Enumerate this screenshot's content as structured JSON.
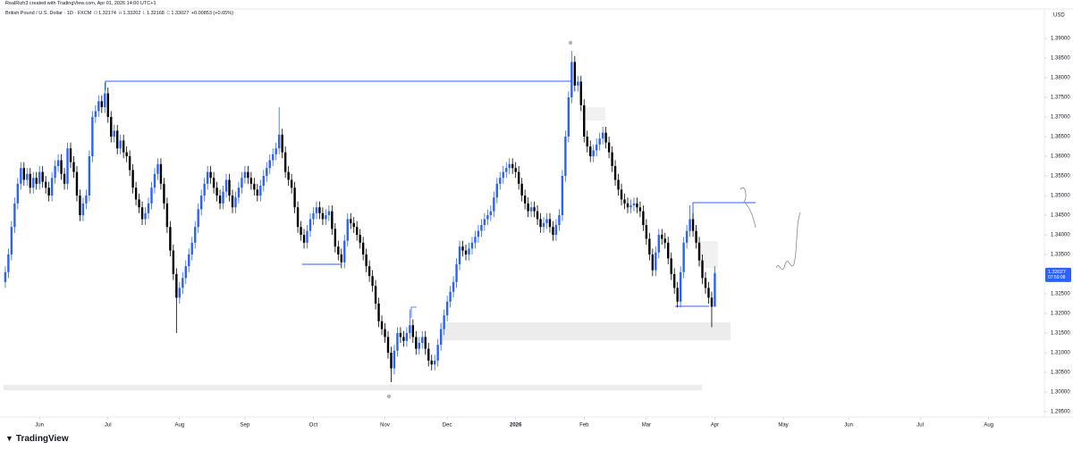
{
  "chart_data": {
    "type": "candlestick",
    "creator_note": "RealRizh3 created with TradingView.com, Apr 01, 2026 14:00 UTC+1",
    "symbol": "British Pound / U.S. Dollar · 1D · FXCM",
    "ohlc_labels": [
      "O",
      "H",
      "L",
      "C"
    ],
    "change": "+0.00853 (+0.65%)",
    "currency": "USD",
    "countdown": "07:59:08",
    "up_color": "#2962ff",
    "down_color": "#000000",
    "grid": false,
    "open": [
      1.328,
      1.3305,
      1.335,
      1.342,
      1.348,
      1.353,
      1.357,
      1.354,
      1.3555,
      1.352,
      1.3545,
      1.353,
      1.356,
      1.3535,
      1.352,
      1.35,
      1.3545,
      1.3575,
      1.359,
      1.3555,
      1.353,
      1.362,
      1.3585,
      1.356,
      1.35,
      1.345,
      1.348,
      1.35,
      1.36,
      1.37,
      1.3715,
      1.374,
      1.3725,
      1.376,
      1.37,
      1.365,
      1.3665,
      1.362,
      1.364,
      1.361,
      1.36,
      1.3565,
      1.352,
      1.349,
      1.347,
      1.344,
      1.3455,
      1.348,
      1.352,
      1.3555,
      1.358,
      1.353,
      1.348,
      1.342,
      1.336,
      1.33,
      1.324,
      1.3265,
      1.329,
      1.332,
      1.335,
      1.338,
      1.342,
      1.3465,
      1.35,
      1.353,
      1.356,
      1.3545,
      1.352,
      1.35,
      1.348,
      1.351,
      1.354,
      1.35,
      1.347,
      1.3495,
      1.352,
      1.3545,
      1.356,
      1.3545,
      1.353,
      1.3515,
      1.35,
      1.3525,
      1.355,
      1.357,
      1.359,
      1.3605,
      1.362,
      1.3655,
      1.361,
      1.356,
      1.354,
      1.352,
      1.347,
      1.342,
      1.34,
      1.338,
      1.341,
      1.344,
      1.3455,
      1.347,
      1.3455,
      1.344,
      1.345,
      1.346,
      1.3415,
      1.337,
      1.335,
      1.333,
      1.3385,
      1.344,
      1.343,
      1.342,
      1.34,
      1.338,
      1.335,
      1.332,
      1.3295,
      1.327,
      1.3225,
      1.318,
      1.316,
      1.314,
      1.31,
      1.306,
      1.3105,
      1.315,
      1.314,
      1.313,
      1.315,
      1.317,
      1.314,
      1.311,
      1.3125,
      1.314,
      1.311,
      1.308,
      1.307,
      1.308,
      1.312,
      1.316,
      1.3195,
      1.323,
      1.3255,
      1.328,
      1.3325,
      1.337,
      1.336,
      1.335,
      1.3365,
      1.338,
      1.3395,
      1.341,
      1.3425,
      1.344,
      1.345,
      1.346,
      1.3495,
      1.353,
      1.3545,
      1.356,
      1.357,
      1.358,
      1.357,
      1.356,
      1.353,
      1.35,
      1.348,
      1.346,
      1.347,
      1.346,
      1.344,
      1.342,
      1.343,
      1.344,
      1.342,
      1.34,
      1.3425,
      1.345,
      1.355,
      1.365,
      1.375,
      1.384,
      1.378,
      1.379,
      1.373,
      1.365,
      1.3625,
      1.36,
      1.3615,
      1.363,
      1.3645,
      1.366,
      1.3635,
      1.361,
      1.3575,
      1.354,
      1.3515,
      1.349,
      1.348,
      1.347,
      1.3475,
      1.348,
      1.347,
      1.346,
      1.3425,
      1.339,
      1.335,
      1.331,
      1.3355,
      1.34,
      1.339,
      1.338,
      1.334,
      1.33,
      1.3265,
      1.323,
      1.3305,
      1.338,
      1.341,
      1.344,
      1.341,
      1.338,
      1.3335,
      1.329,
      1.3265,
      1.324,
      1.32174
    ],
    "high": [
      1.332,
      1.3365,
      1.3435,
      1.3495,
      1.3545,
      1.3585,
      1.3585,
      1.357,
      1.357,
      1.356,
      1.356,
      1.3575,
      1.3575,
      1.355,
      1.3535,
      1.356,
      1.359,
      1.3605,
      1.3605,
      1.357,
      1.3635,
      1.3635,
      1.36,
      1.3575,
      1.3515,
      1.3495,
      1.3515,
      1.3615,
      1.3715,
      1.373,
      1.3755,
      1.3755,
      1.3788,
      1.3775,
      1.3715,
      1.368,
      1.368,
      1.3655,
      1.3655,
      1.3625,
      1.3615,
      1.358,
      1.3535,
      1.3505,
      1.3485,
      1.347,
      1.3495,
      1.3535,
      1.357,
      1.3595,
      1.3595,
      1.3545,
      1.3495,
      1.3435,
      1.3375,
      1.3315,
      1.328,
      1.3305,
      1.3335,
      1.3365,
      1.3395,
      1.3435,
      1.348,
      1.3515,
      1.3545,
      1.3575,
      1.3575,
      1.356,
      1.3535,
      1.3515,
      1.3525,
      1.3555,
      1.3555,
      1.3515,
      1.351,
      1.3535,
      1.356,
      1.3575,
      1.3575,
      1.356,
      1.3545,
      1.353,
      1.354,
      1.3565,
      1.3585,
      1.3605,
      1.362,
      1.3635,
      1.3725,
      1.367,
      1.3625,
      1.3575,
      1.3555,
      1.3535,
      1.3485,
      1.3435,
      1.3415,
      1.3425,
      1.3455,
      1.347,
      1.3485,
      1.3485,
      1.347,
      1.3465,
      1.3475,
      1.3475,
      1.343,
      1.3385,
      1.3365,
      1.34,
      1.3455,
      1.3455,
      1.3445,
      1.3435,
      1.3415,
      1.3395,
      1.3365,
      1.3335,
      1.331,
      1.3285,
      1.324,
      1.3195,
      1.3175,
      1.3155,
      1.3115,
      1.312,
      1.3165,
      1.3165,
      1.3155,
      1.3165,
      1.321,
      1.3185,
      1.3155,
      1.314,
      1.3155,
      1.3155,
      1.3125,
      1.3095,
      1.3095,
      1.3135,
      1.3175,
      1.321,
      1.3245,
      1.327,
      1.3295,
      1.334,
      1.3385,
      1.3385,
      1.3375,
      1.338,
      1.3395,
      1.341,
      1.3425,
      1.344,
      1.3455,
      1.3465,
      1.3475,
      1.351,
      1.3545,
      1.356,
      1.3575,
      1.3585,
      1.3595,
      1.3595,
      1.3585,
      1.3575,
      1.3545,
      1.3515,
      1.3495,
      1.3485,
      1.3485,
      1.3475,
      1.3455,
      1.3445,
      1.3455,
      1.3455,
      1.3435,
      1.344,
      1.3465,
      1.3565,
      1.3665,
      1.3765,
      1.3868,
      1.3855,
      1.3805,
      1.3805,
      1.3745,
      1.3665,
      1.364,
      1.363,
      1.3645,
      1.366,
      1.3675,
      1.3675,
      1.365,
      1.3625,
      1.359,
      1.3555,
      1.353,
      1.3505,
      1.3495,
      1.349,
      1.3495,
      1.3495,
      1.3485,
      1.3475,
      1.344,
      1.3405,
      1.3365,
      1.337,
      1.3415,
      1.3415,
      1.3405,
      1.3395,
      1.3355,
      1.3315,
      1.328,
      1.332,
      1.3395,
      1.3425,
      1.3475,
      1.3455,
      1.3425,
      1.3395,
      1.335,
      1.3305,
      1.328,
      1.3255,
      1.33202
    ],
    "low": [
      1.3265,
      1.329,
      1.3335,
      1.3405,
      1.3465,
      1.3515,
      1.3525,
      1.3525,
      1.3505,
      1.3505,
      1.3515,
      1.3515,
      1.352,
      1.3505,
      1.3485,
      1.3485,
      1.353,
      1.356,
      1.354,
      1.3515,
      1.3515,
      1.357,
      1.3545,
      1.3485,
      1.3435,
      1.3435,
      1.3465,
      1.3485,
      1.3585,
      1.3685,
      1.37,
      1.371,
      1.371,
      1.3685,
      1.3635,
      1.3635,
      1.3605,
      1.3605,
      1.3595,
      1.3585,
      1.355,
      1.3505,
      1.3475,
      1.3455,
      1.3425,
      1.3425,
      1.344,
      1.3465,
      1.3505,
      1.354,
      1.3515,
      1.3465,
      1.3405,
      1.3345,
      1.3285,
      1.315,
      1.3225,
      1.325,
      1.3275,
      1.3305,
      1.3335,
      1.3365,
      1.3405,
      1.345,
      1.3485,
      1.3515,
      1.353,
      1.3505,
      1.3485,
      1.3465,
      1.3465,
      1.3495,
      1.3485,
      1.3455,
      1.3455,
      1.348,
      1.3505,
      1.353,
      1.353,
      1.3515,
      1.35,
      1.3485,
      1.3485,
      1.351,
      1.3535,
      1.3555,
      1.3575,
      1.359,
      1.3605,
      1.3595,
      1.3545,
      1.3525,
      1.3505,
      1.3455,
      1.3405,
      1.3385,
      1.3365,
      1.3365,
      1.3395,
      1.3425,
      1.344,
      1.344,
      1.3425,
      1.3425,
      1.3435,
      1.34,
      1.3355,
      1.3335,
      1.3315,
      1.3315,
      1.337,
      1.3415,
      1.3405,
      1.3385,
      1.3365,
      1.3335,
      1.3305,
      1.328,
      1.3255,
      1.321,
      1.3165,
      1.3145,
      1.3125,
      1.3085,
      1.3025,
      1.3045,
      1.309,
      1.3125,
      1.3115,
      1.3115,
      1.3135,
      1.3125,
      1.3095,
      1.3095,
      1.311,
      1.3095,
      1.3065,
      1.3055,
      1.3055,
      1.3065,
      1.3105,
      1.3145,
      1.318,
      1.3215,
      1.324,
      1.3265,
      1.331,
      1.3345,
      1.3335,
      1.3335,
      1.335,
      1.3365,
      1.338,
      1.3395,
      1.341,
      1.3425,
      1.3435,
      1.3445,
      1.348,
      1.3515,
      1.353,
      1.3545,
      1.3555,
      1.3555,
      1.3545,
      1.3515,
      1.3485,
      1.3465,
      1.3445,
      1.3445,
      1.3445,
      1.3425,
      1.3405,
      1.3405,
      1.3415,
      1.3405,
      1.3385,
      1.3385,
      1.341,
      1.3435,
      1.3535,
      1.3635,
      1.3735,
      1.3765,
      1.3765,
      1.3715,
      1.3635,
      1.361,
      1.3585,
      1.3585,
      1.36,
      1.3615,
      1.363,
      1.362,
      1.3595,
      1.356,
      1.3525,
      1.35,
      1.3475,
      1.3465,
      1.3455,
      1.3455,
      1.346,
      1.3455,
      1.3445,
      1.341,
      1.3375,
      1.3335,
      1.3295,
      1.3295,
      1.334,
      1.3375,
      1.3365,
      1.3325,
      1.3285,
      1.325,
      1.3215,
      1.3215,
      1.329,
      1.3365,
      1.3395,
      1.3395,
      1.3365,
      1.332,
      1.3275,
      1.325,
      1.3225,
      1.3165,
      1.32168
    ],
    "close": [
      1.3305,
      1.335,
      1.342,
      1.348,
      1.353,
      1.357,
      1.354,
      1.3555,
      1.352,
      1.3545,
      1.353,
      1.356,
      1.3535,
      1.352,
      1.35,
      1.3545,
      1.3575,
      1.359,
      1.3555,
      1.353,
      1.362,
      1.3585,
      1.356,
      1.35,
      1.345,
      1.348,
      1.35,
      1.36,
      1.37,
      1.3715,
      1.374,
      1.3725,
      1.376,
      1.37,
      1.365,
      1.3665,
      1.362,
      1.364,
      1.361,
      1.36,
      1.3565,
      1.352,
      1.349,
      1.347,
      1.344,
      1.3455,
      1.348,
      1.352,
      1.3555,
      1.358,
      1.353,
      1.348,
      1.342,
      1.336,
      1.33,
      1.324,
      1.3265,
      1.329,
      1.332,
      1.335,
      1.338,
      1.342,
      1.3465,
      1.35,
      1.353,
      1.356,
      1.3545,
      1.352,
      1.35,
      1.348,
      1.351,
      1.354,
      1.35,
      1.347,
      1.3495,
      1.352,
      1.3545,
      1.356,
      1.3545,
      1.353,
      1.3515,
      1.35,
      1.3525,
      1.355,
      1.357,
      1.359,
      1.3605,
      1.362,
      1.3655,
      1.361,
      1.356,
      1.354,
      1.352,
      1.347,
      1.342,
      1.34,
      1.338,
      1.341,
      1.344,
      1.3455,
      1.347,
      1.3455,
      1.344,
      1.345,
      1.346,
      1.3415,
      1.337,
      1.335,
      1.333,
      1.3385,
      1.344,
      1.343,
      1.342,
      1.34,
      1.338,
      1.335,
      1.332,
      1.3295,
      1.327,
      1.3225,
      1.318,
      1.316,
      1.314,
      1.31,
      1.306,
      1.3105,
      1.315,
      1.314,
      1.313,
      1.315,
      1.317,
      1.314,
      1.311,
      1.3125,
      1.314,
      1.311,
      1.308,
      1.307,
      1.308,
      1.312,
      1.316,
      1.3195,
      1.323,
      1.3255,
      1.328,
      1.3325,
      1.337,
      1.336,
      1.335,
      1.3365,
      1.338,
      1.3395,
      1.341,
      1.3425,
      1.344,
      1.345,
      1.346,
      1.3495,
      1.353,
      1.3545,
      1.356,
      1.357,
      1.358,
      1.357,
      1.356,
      1.353,
      1.35,
      1.348,
      1.346,
      1.347,
      1.346,
      1.344,
      1.342,
      1.343,
      1.344,
      1.342,
      1.34,
      1.3425,
      1.345,
      1.355,
      1.365,
      1.375,
      1.384,
      1.378,
      1.379,
      1.373,
      1.365,
      1.3625,
      1.36,
      1.3615,
      1.363,
      1.3645,
      1.366,
      1.3635,
      1.361,
      1.3575,
      1.354,
      1.3515,
      1.349,
      1.348,
      1.347,
      1.3475,
      1.348,
      1.347,
      1.346,
      1.3425,
      1.339,
      1.335,
      1.331,
      1.3355,
      1.34,
      1.339,
      1.338,
      1.334,
      1.33,
      1.3265,
      1.323,
      1.3305,
      1.338,
      1.341,
      1.344,
      1.341,
      1.338,
      1.3335,
      1.329,
      1.3265,
      1.324,
      1.3217,
      1.33027
    ],
    "ylim": [
      1.29364,
      1.3975
    ],
    "yticks": [
      {
        "value": 1.295,
        "label": "1.29500"
      },
      {
        "value": 1.3,
        "label": "1.30000"
      },
      {
        "value": 1.305,
        "label": "1.30500"
      },
      {
        "value": 1.31,
        "label": "1.31000"
      },
      {
        "value": 1.315,
        "label": "1.31500"
      },
      {
        "value": 1.32,
        "label": "1.32000"
      },
      {
        "value": 1.325,
        "label": "1.32500"
      },
      {
        "value": 1.335,
        "label": "1.33500"
      },
      {
        "value": 1.34,
        "label": "1.34000"
      },
      {
        "value": 1.345,
        "label": "1.34500"
      },
      {
        "value": 1.35,
        "label": "1.35000"
      },
      {
        "value": 1.355,
        "label": "1.35500"
      },
      {
        "value": 1.36,
        "label": "1.36000"
      },
      {
        "value": 1.365,
        "label": "1.36500"
      },
      {
        "value": 1.37,
        "label": "1.37000"
      },
      {
        "value": 1.375,
        "label": "1.37500"
      },
      {
        "value": 1.38,
        "label": "1.38000"
      },
      {
        "value": 1.385,
        "label": "1.38500"
      },
      {
        "value": 1.39,
        "label": "1.39000"
      }
    ],
    "xlim": [
      -1.7,
      333.9
    ],
    "xticks": [
      {
        "value": 11,
        "label": "Jun"
      },
      {
        "value": 33,
        "label": "Jul"
      },
      {
        "value": 56,
        "label": "Aug"
      },
      {
        "value": 77,
        "label": "Sep"
      },
      {
        "value": 99,
        "label": "Oct"
      },
      {
        "value": 122,
        "label": "Nov"
      },
      {
        "value": 142,
        "label": "Dec"
      },
      {
        "value": 164,
        "label": "2026"
      },
      {
        "value": 186,
        "label": "Feb"
      },
      {
        "value": 206,
        "label": "Mar"
      },
      {
        "value": 228,
        "label": "Apr"
      },
      {
        "value": 250,
        "label": "May"
      },
      {
        "value": 271,
        "label": "Jun"
      },
      {
        "value": 294,
        "label": "Jul"
      },
      {
        "value": 316,
        "label": "Aug"
      }
    ]
  },
  "branding": "TradingView"
}
